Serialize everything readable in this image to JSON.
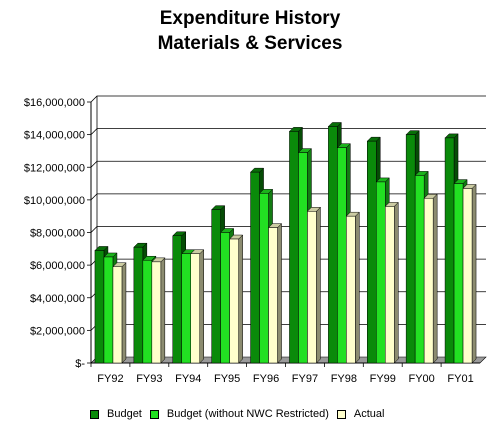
{
  "chart_data": {
    "type": "bar",
    "title_lines": [
      "Expenditure History",
      "Materials & Services"
    ],
    "categories": [
      "FY92",
      "FY93",
      "FY94",
      "FY95",
      "FY96",
      "FY97",
      "FY98",
      "FY99",
      "FY00",
      "FY01"
    ],
    "series": [
      {
        "name": "Budget",
        "color": "#0a8a0a",
        "values": [
          6900000,
          7100000,
          7800000,
          9400000,
          11700000,
          14200000,
          14500000,
          13600000,
          14000000,
          13800000
        ]
      },
      {
        "name": "Budget (without NWC Restricted)",
        "color": "#22e022",
        "values": [
          6500000,
          6300000,
          6700000,
          8000000,
          10400000,
          12900000,
          13200000,
          11100000,
          11500000,
          11000000
        ]
      },
      {
        "name": "Actual",
        "color": "#ffffcc",
        "values": [
          5900000,
          6200000,
          6700000,
          7600000,
          8300000,
          9300000,
          9000000,
          9600000,
          10100000,
          10700000
        ]
      }
    ],
    "yticks": [
      "$16,000,000",
      "$14,000,000",
      "$12,000,000",
      "$10,000,000",
      "$8,000,000",
      "$6,000,000",
      "$4,000,000",
      "$2,000,000",
      "$-"
    ],
    "ylim": [
      0,
      16000000
    ],
    "grid": true,
    "legend_position": "bottom"
  }
}
